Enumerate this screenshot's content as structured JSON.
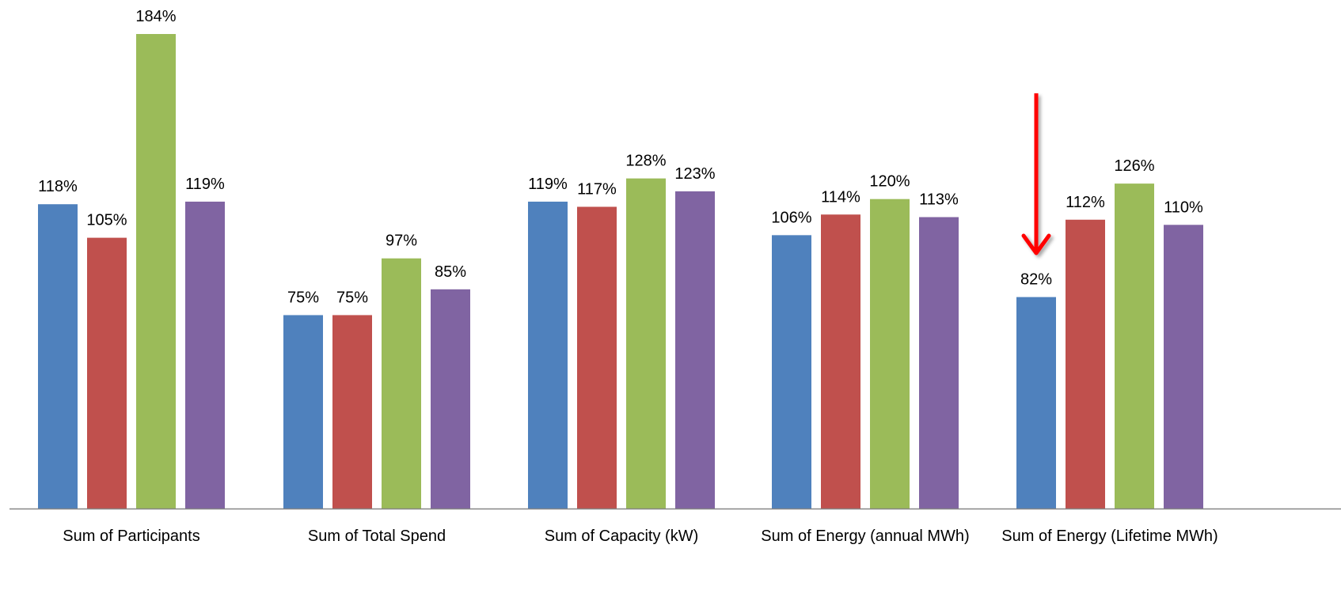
{
  "chart_data": {
    "type": "bar",
    "title": "",
    "xlabel": "",
    "ylabel": "",
    "ylim": [
      0,
      200
    ],
    "grid": false,
    "legend": "none",
    "categories": [
      "Sum of Participants",
      "Sum of Total Spend",
      "Sum of Capacity (kW)",
      "Sum of Energy (annual MWh)",
      "Sum of Energy (Lifetime MWh)"
    ],
    "series": [
      {
        "color": "#4F81BD",
        "values": [
          118,
          75,
          119,
          106,
          82
        ],
        "labels": [
          "118%",
          "75%",
          "119%",
          "106%",
          "82%"
        ]
      },
      {
        "color": "#C0504D",
        "values": [
          105,
          75,
          117,
          114,
          112
        ],
        "labels": [
          "105%",
          "75%",
          "117%",
          "114%",
          "112%"
        ]
      },
      {
        "color": "#9BBB59",
        "values": [
          184,
          97,
          128,
          120,
          126
        ],
        "labels": [
          "184%",
          "97%",
          "128%",
          "120%",
          "126%"
        ]
      },
      {
        "color": "#8064A2",
        "values": [
          119,
          85,
          123,
          113,
          110
        ],
        "labels": [
          "119%",
          "85%",
          "123%",
          "113%",
          "110%"
        ]
      }
    ],
    "annotation": {
      "type": "arrow",
      "color": "#FF0000",
      "points_to": {
        "category_index": 4,
        "series_index": 0
      }
    }
  }
}
